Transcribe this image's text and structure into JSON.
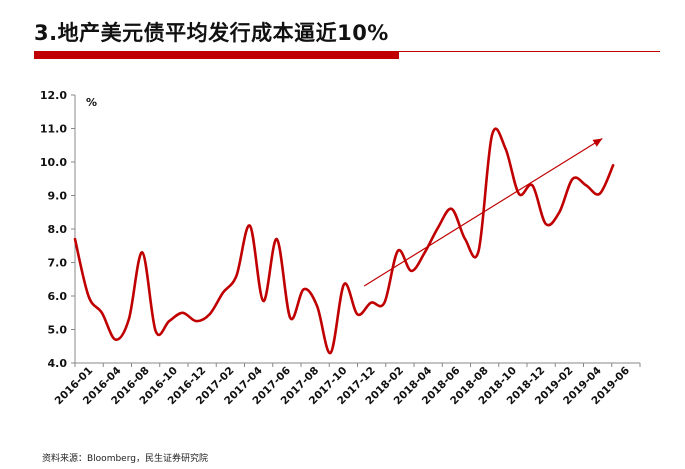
{
  "header": {
    "title": "3.地产美元债平均发行成本逼近10%",
    "accent_color": "#c00000"
  },
  "footer": {
    "source": "资料来源：Bloomberg，民生证券研究院"
  },
  "chart_data": {
    "type": "line",
    "title": "",
    "xlabel": "",
    "ylabel": "%",
    "ylim": [
      4.0,
      12.0
    ],
    "y_ticks": [
      "4.0",
      "5.0",
      "6.0",
      "7.0",
      "8.0",
      "9.0",
      "10.0",
      "11.0",
      "12.0"
    ],
    "grid": false,
    "legend": "none",
    "x_tick_labels": [
      "2016-01",
      "2016-04",
      "2016-08",
      "2016-10",
      "2016-12",
      "2017-02",
      "2017-04",
      "2017-06",
      "2017-08",
      "2017-10",
      "2017-12",
      "2018-02",
      "2018-04",
      "2018-06",
      "2018-08",
      "2018-10",
      "2018-12",
      "2019-02",
      "2019-04",
      "2019-06"
    ],
    "x_range": [
      0,
      42
    ],
    "series": [
      {
        "color": "#c00000",
        "points": [
          [
            0,
            7.7
          ],
          [
            1,
            6.0
          ],
          [
            2,
            5.5
          ],
          [
            3,
            4.7
          ],
          [
            4,
            5.3
          ],
          [
            5,
            7.3
          ],
          [
            6,
            4.95
          ],
          [
            7,
            5.25
          ],
          [
            8,
            5.5
          ],
          [
            9,
            5.25
          ],
          [
            10,
            5.45
          ],
          [
            11,
            6.1
          ],
          [
            12,
            6.6
          ],
          [
            13,
            8.1
          ],
          [
            14,
            5.85
          ],
          [
            15,
            7.7
          ],
          [
            16,
            5.35
          ],
          [
            17,
            6.2
          ],
          [
            18,
            5.7
          ],
          [
            19,
            4.3
          ],
          [
            20,
            6.35
          ],
          [
            21,
            5.45
          ],
          [
            22,
            5.8
          ],
          [
            23,
            5.8
          ],
          [
            24,
            7.35
          ],
          [
            25,
            6.75
          ],
          [
            26,
            7.3
          ],
          [
            27,
            8.05
          ],
          [
            28,
            8.6
          ],
          [
            29,
            7.7
          ],
          [
            30,
            7.35
          ],
          [
            31,
            10.8
          ],
          [
            32,
            10.4
          ],
          [
            33,
            9.05
          ],
          [
            34,
            9.3
          ],
          [
            35,
            8.15
          ],
          [
            36,
            8.5
          ],
          [
            37,
            9.5
          ],
          [
            38,
            9.3
          ],
          [
            39,
            9.05
          ],
          [
            40,
            9.9
          ]
        ]
      }
    ],
    "annotations": [
      {
        "type": "arrow",
        "color": "#c00000",
        "from": [
          21.5,
          6.3
        ],
        "to": [
          39.2,
          10.7
        ]
      }
    ]
  }
}
